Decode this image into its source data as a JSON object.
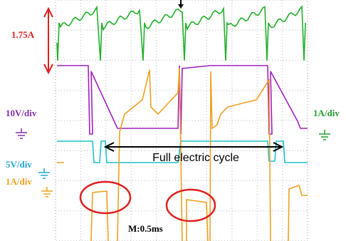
{
  "labels": {
    "amplitude": "1.75A",
    "purple_scale": "10V/div",
    "green_scale": "1A/div",
    "cyan_scale": "5V/div",
    "orange_scale": "1A/div",
    "cycle": "Full electric cycle",
    "timebase": "M:0.5ms"
  }
}
